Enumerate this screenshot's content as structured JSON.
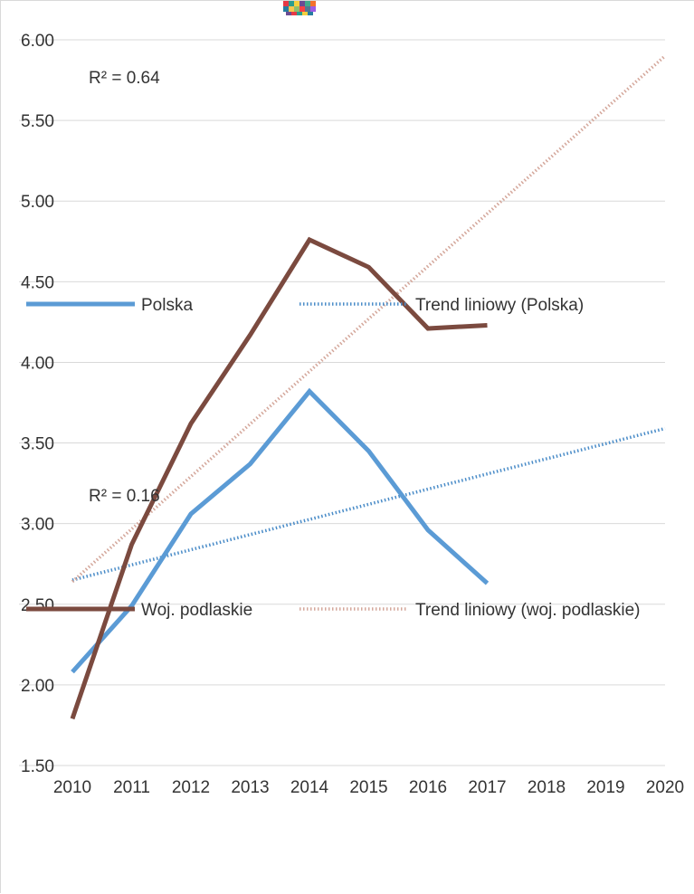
{
  "chart_data": {
    "type": "line",
    "x": [
      2010,
      2011,
      2012,
      2013,
      2014,
      2015,
      2016,
      2017,
      2018,
      2019,
      2020
    ],
    "x_tick_labels": [
      "2010",
      "2011",
      "2012",
      "2013",
      "2014",
      "2015",
      "2016",
      "2017",
      "2018",
      "2019",
      "2020"
    ],
    "xlim": [
      2010,
      2020
    ],
    "ylim": [
      1.5,
      6.0
    ],
    "y_ticks": [
      1.5,
      2.0,
      2.5,
      3.0,
      3.5,
      4.0,
      4.5,
      5.0,
      5.5,
      6.0
    ],
    "y_tick_labels": [
      "1.50",
      "2.00",
      "2.50",
      "3.00",
      "3.50",
      "4.00",
      "4.50",
      "5.00",
      "5.50",
      "6.00"
    ],
    "grid": true,
    "series": [
      {
        "name": "Polska",
        "color": "#5b9bd5",
        "x": [
          2010,
          2011,
          2012,
          2013,
          2014,
          2015,
          2016,
          2017
        ],
        "values": [
          2.08,
          2.49,
          3.06,
          3.37,
          3.82,
          3.45,
          2.96,
          2.63
        ]
      },
      {
        "name": "Woj. podlaskie",
        "color": "#7b4a3f",
        "x": [
          2010,
          2011,
          2012,
          2013,
          2014,
          2015,
          2016,
          2017
        ],
        "values": [
          1.79,
          2.87,
          3.62,
          4.17,
          4.76,
          4.59,
          4.21,
          4.23
        ]
      }
    ],
    "trendlines": [
      {
        "name": "Trend liniowy (Polska)",
        "color": "#4a8cc8",
        "x": [
          2010,
          2020
        ],
        "values": [
          2.65,
          3.59
        ],
        "r2_label": "R² = 0.16"
      },
      {
        "name": "Trend liniowy (woj. podlaskie)",
        "color": "#d4a79b",
        "x": [
          2010,
          2020
        ],
        "values": [
          2.64,
          5.9
        ],
        "r2_label": "R² = 0.64"
      }
    ],
    "legend": {
      "placement": "inside-middle"
    }
  }
}
